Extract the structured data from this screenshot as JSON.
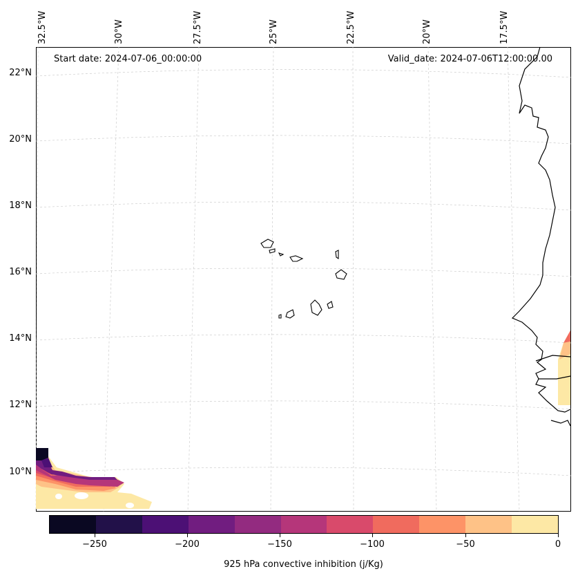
{
  "map": {
    "start_date": "Start date: 2024-07-06_00:00:00",
    "valid_date": "Valid_date: 2024-07-06T12:00:00.00",
    "lon_labels": [
      "32.5°W",
      "30°W",
      "27.5°W",
      "25°W",
      "22.5°W",
      "20°W",
      "17.5°W"
    ],
    "lat_labels": [
      "22°N",
      "20°N",
      "18°N",
      "16°N",
      "14°N",
      "12°N",
      "10°N"
    ],
    "region": "Cape Verde Islands / West African coast"
  },
  "colorbar": {
    "label": "925 hPa convective inhibition (j/Kg)",
    "tick_labels": [
      "−250",
      "−200",
      "−150",
      "−100",
      "−50",
      "0"
    ],
    "levels": [
      -275,
      -250,
      -225,
      -200,
      -175,
      -150,
      -125,
      -100,
      -75,
      -50,
      -25,
      0
    ],
    "colors": [
      "#0a0822",
      "#221149",
      "#4c1075",
      "#711d80",
      "#932b80",
      "#b5367a",
      "#d94a6b",
      "#f06b5e",
      "#fd9367",
      "#fec287",
      "#fde8a5"
    ]
  }
}
